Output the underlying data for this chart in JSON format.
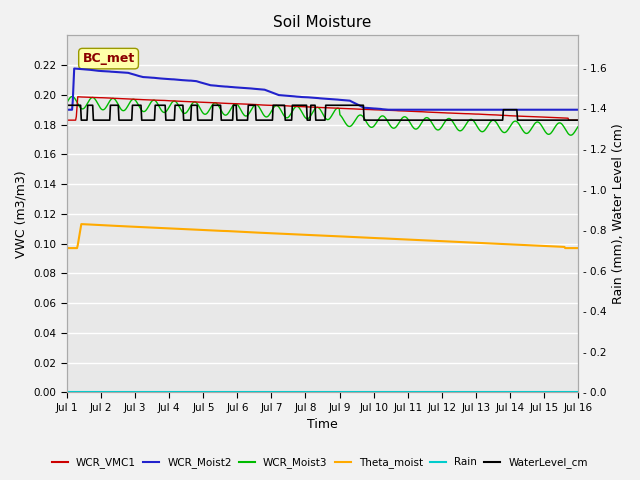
{
  "title": "Soil Moisture",
  "xlabel": "Time",
  "ylabel_left": "VWC (m3/m3)",
  "ylabel_right": "Rain (mm), Water Level (cm)",
  "ylim_left": [
    0.0,
    0.24
  ],
  "ylim_right": [
    0.0,
    1.76
  ],
  "xtick_labels": [
    "Jul 1",
    "Jul 2",
    "Jul 3",
    "Jul 4",
    "Jul 5",
    "Jul 6",
    "Jul 7",
    "Jul 8",
    "Jul 9",
    "Jul 10",
    "Jul 11",
    "Jul 12",
    "Jul 13",
    "Jul 14",
    "Jul 15",
    "Jul 16"
  ],
  "yticks_left": [
    0.0,
    0.02,
    0.04,
    0.06,
    0.08,
    0.1,
    0.12,
    0.14,
    0.16,
    0.18,
    0.2,
    0.22
  ],
  "yticks_right": [
    0.0,
    0.2,
    0.4,
    0.6,
    0.8,
    1.0,
    1.2,
    1.4,
    1.6
  ],
  "bc_met_label": "BC_met",
  "legend_entries": [
    "WCR_VMC1",
    "WCR_Moist2",
    "WCR_Moist3",
    "Theta_moist",
    "Rain",
    "WaterLevel_cm"
  ],
  "line_colors": {
    "WCR_VMC1": "#cc0000",
    "WCR_Moist2": "#2222cc",
    "WCR_Moist3": "#00bb00",
    "Theta_moist": "#ffaa00",
    "Rain": "#00cccc",
    "WaterLevel_cm": "#000000"
  },
  "fig_facecolor": "#f2f2f2",
  "plot_facecolor": "#e8e8e8",
  "grid_color": "#ffffff"
}
